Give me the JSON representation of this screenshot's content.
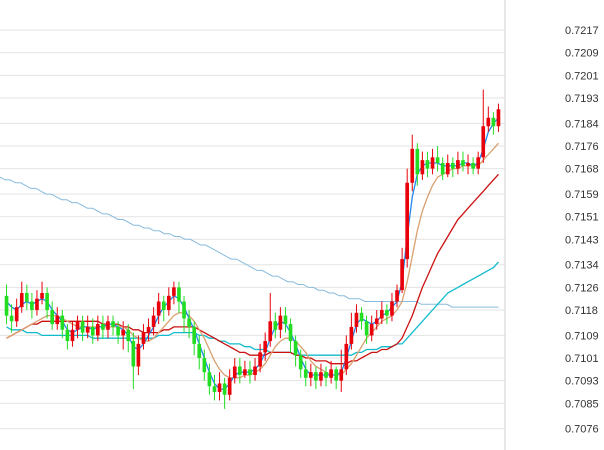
{
  "chart_data": {
    "type": "candlestick",
    "title": "",
    "xlabel": "",
    "ylabel": "",
    "ylim": [
      7072,
      7222
    ],
    "price_scale": 10000,
    "grid": true,
    "y_axis_position": "right",
    "y_ticks": [
      "0.7217",
      "0.7209",
      "0.7201",
      "0.7193",
      "0.7184",
      "0.7176",
      "0.7168",
      "0.7159",
      "0.7151",
      "0.7143",
      "0.7134",
      "0.7126",
      "0.7118",
      "0.7109",
      "0.7101",
      "0.7093",
      "0.7085",
      "0.7076"
    ],
    "colors": {
      "up": "#e8000b",
      "down": "#22dd22",
      "grid": "#e3e3e3",
      "axis": "#d0d0d0",
      "ma_fast": "#2288ee",
      "ma_mid": "#d9a070",
      "ma_slow": "#cc1111",
      "ma_cyan": "#11bbcc",
      "ma_long": "#88bbdd"
    },
    "candles": [
      [
        7123,
        7116,
        7127,
        7113
      ],
      [
        7116,
        7114,
        7120,
        7110
      ],
      [
        7114,
        7119,
        7122,
        7112
      ],
      [
        7119,
        7124,
        7128,
        7117
      ],
      [
        7124,
        7121,
        7127,
        7118
      ],
      [
        7121,
        7118,
        7124,
        7115
      ],
      [
        7118,
        7122,
        7125,
        7116
      ],
      [
        7122,
        7124,
        7128,
        7120
      ],
      [
        7124,
        7118,
        7126,
        7115
      ],
      [
        7118,
        7113,
        7121,
        7111
      ],
      [
        7113,
        7116,
        7119,
        7111
      ],
      [
        7116,
        7111,
        7118,
        7108
      ],
      [
        7111,
        7107,
        7113,
        7104
      ],
      [
        7107,
        7111,
        7114,
        7105
      ],
      [
        7111,
        7114,
        7116,
        7108
      ],
      [
        7114,
        7110,
        7116,
        7107
      ],
      [
        7110,
        7112,
        7116,
        7108
      ],
      [
        7112,
        7109,
        7115,
        7106
      ],
      [
        7109,
        7113,
        7116,
        7107
      ],
      [
        7113,
        7111,
        7116,
        7108
      ],
      [
        7111,
        7114,
        7116,
        7108
      ],
      [
        7114,
        7112,
        7116,
        7109
      ],
      [
        7112,
        7109,
        7114,
        7106
      ],
      [
        7109,
        7111,
        7114,
        7104
      ],
      [
        7111,
        7107,
        7113,
        7103
      ],
      [
        7107,
        7098,
        7110,
        7090
      ],
      [
        7098,
        7106,
        7109,
        7095
      ],
      [
        7106,
        7110,
        7113,
        7104
      ],
      [
        7110,
        7112,
        7115,
        7107
      ],
      [
        7112,
        7116,
        7119,
        7109
      ],
      [
        7116,
        7121,
        7124,
        7113
      ],
      [
        7121,
        7118,
        7123,
        7114
      ],
      [
        7118,
        7123,
        7126,
        7116
      ],
      [
        7123,
        7126,
        7128,
        7120
      ],
      [
        7126,
        7121,
        7128,
        7117
      ],
      [
        7121,
        7115,
        7123,
        7110
      ],
      [
        7115,
        7112,
        7118,
        7108
      ],
      [
        7112,
        7106,
        7114,
        7102
      ],
      [
        7106,
        7101,
        7109,
        7097
      ],
      [
        7101,
        7096,
        7104,
        7093
      ],
      [
        7096,
        7091,
        7099,
        7088
      ],
      [
        7091,
        7089,
        7095,
        7086
      ],
      [
        7089,
        7092,
        7096,
        7086
      ],
      [
        7092,
        7088,
        7094,
        7083
      ],
      [
        7088,
        7094,
        7097,
        7086
      ],
      [
        7094,
        7098,
        7101,
        7092
      ],
      [
        7098,
        7095,
        7101,
        7092
      ],
      [
        7095,
        7097,
        7100,
        7094
      ],
      [
        7097,
        7095,
        7100,
        7092
      ],
      [
        7095,
        7098,
        7101,
        7093
      ],
      [
        7098,
        7103,
        7106,
        7096
      ],
      [
        7103,
        7107,
        7110,
        7100
      ],
      [
        7107,
        7114,
        7124,
        7105
      ],
      [
        7114,
        7111,
        7117,
        7108
      ],
      [
        7111,
        7116,
        7119,
        7108
      ],
      [
        7116,
        7113,
        7119,
        7110
      ],
      [
        7113,
        7107,
        7115,
        7103
      ],
      [
        7107,
        7102,
        7109,
        7098
      ],
      [
        7102,
        7097,
        7104,
        7094
      ],
      [
        7097,
        7094,
        7100,
        7091
      ],
      [
        7094,
        7096,
        7099,
        7091
      ],
      [
        7096,
        7093,
        7098,
        7090
      ],
      [
        7093,
        7096,
        7099,
        7091
      ],
      [
        7096,
        7094,
        7098,
        7091
      ],
      [
        7094,
        7097,
        7100,
        7092
      ],
      [
        7097,
        7093,
        7098,
        7090
      ],
      [
        7093,
        7097,
        7104,
        7089
      ],
      [
        7097,
        7106,
        7109,
        7095
      ],
      [
        7106,
        7112,
        7117,
        7104
      ],
      [
        7112,
        7117,
        7120,
        7110
      ],
      [
        7117,
        7114,
        7119,
        7111
      ],
      [
        7114,
        7109,
        7116,
        7106
      ],
      [
        7109,
        7113,
        7116,
        7107
      ],
      [
        7113,
        7115,
        7118,
        7111
      ],
      [
        7115,
        7118,
        7121,
        7113
      ],
      [
        7118,
        7116,
        7120,
        7113
      ],
      [
        7116,
        7121,
        7124,
        7114
      ],
      [
        7121,
        7125,
        7127,
        7119
      ],
      [
        7125,
        7136,
        7140,
        7124
      ],
      [
        7136,
        7163,
        7168,
        7133
      ],
      [
        7163,
        7175,
        7180,
        7160
      ],
      [
        7175,
        7166,
        7177,
        7162
      ],
      [
        7166,
        7171,
        7174,
        7164
      ],
      [
        7171,
        7168,
        7174,
        7165
      ],
      [
        7168,
        7172,
        7175,
        7166
      ],
      [
        7172,
        7170,
        7176,
        7167
      ],
      [
        7170,
        7166,
        7172,
        7164
      ],
      [
        7166,
        7170,
        7173,
        7165
      ],
      [
        7170,
        7168,
        7172,
        7165
      ],
      [
        7168,
        7171,
        7174,
        7166
      ],
      [
        7171,
        7169,
        7174,
        7167
      ],
      [
        7169,
        7170,
        7173,
        7166
      ],
      [
        7170,
        7168,
        7172,
        7166
      ],
      [
        7168,
        7172,
        7174,
        7166
      ],
      [
        7172,
        7183,
        7196,
        7170
      ],
      [
        7183,
        7186,
        7190,
        7181
      ],
      [
        7186,
        7183,
        7188,
        7180
      ],
      [
        7183,
        7189,
        7191,
        7181
      ]
    ],
    "ma_fast": [
      7121,
      7119,
      7118,
      7120,
      7121,
      7120,
      7121,
      7122,
      7121,
      7118,
      7116,
      7114,
      7111,
      7110,
      7111,
      7112,
      7112,
      7111,
      7112,
      7112,
      7113,
      7113,
      7112,
      7111,
      7109,
      7105,
      7104,
      7106,
      7109,
      7112,
      7116,
      7119,
      7121,
      7123,
      7122,
      7119,
      7115,
      7111,
      7106,
      7101,
      7096,
      7092,
      7090,
      7090,
      7092,
      7095,
      7096,
      7096,
      7096,
      7097,
      7099,
      7103,
      7108,
      7112,
      7114,
      7113,
      7110,
      7106,
      7101,
      7097,
      7095,
      7095,
      7095,
      7095,
      7095,
      7095,
      7096,
      7101,
      7107,
      7113,
      7115,
      7114,
      7113,
      7114,
      7116,
      7117,
      7119,
      7121,
      7128,
      7144,
      7158,
      7166,
      7169,
      7170,
      7170,
      7170,
      7169,
      7169,
      7169,
      7169,
      7170,
      7170,
      7169,
      7170,
      7175,
      7181,
      7184,
      7186
    ],
    "ma_mid": [
      7108,
      7109,
      7110,
      7111,
      7112,
      7113,
      7114,
      7115,
      7116,
      7116,
      7116,
      7115,
      7114,
      7113,
      7112,
      7112,
      7112,
      7112,
      7112,
      7112,
      7112,
      7112,
      7112,
      7112,
      7111,
      7109,
      7108,
      7107,
      7107,
      7108,
      7110,
      7112,
      7114,
      7116,
      7117,
      7117,
      7116,
      7114,
      7111,
      7108,
      7104,
      7100,
      7097,
      7095,
      7094,
      7094,
      7094,
      7095,
      7095,
      7096,
      7097,
      7099,
      7102,
      7105,
      7107,
      7108,
      7108,
      7107,
      7105,
      7103,
      7100,
      7098,
      7097,
      7096,
      7095,
      7095,
      7095,
      7097,
      7099,
      7102,
      7105,
      7108,
      7110,
      7112,
      7114,
      7115,
      7116,
      7118,
      7121,
      7128,
      7137,
      7146,
      7153,
      7158,
      7162,
      7165,
      7166,
      7167,
      7168,
      7168,
      7169,
      7169,
      7169,
      7169,
      7171,
      7173,
      7175,
      7177
    ],
    "ma_slow": [
      7108,
      7109,
      7110,
      7111,
      7112,
      7113,
      7113,
      7114,
      7114,
      7114,
      7114,
      7114,
      7114,
      7114,
      7114,
      7114,
      7114,
      7114,
      7114,
      7113,
      7113,
      7113,
      7113,
      7112,
      7112,
      7111,
      7111,
      7110,
      7110,
      7110,
      7110,
      7111,
      7111,
      7112,
      7112,
      7112,
      7112,
      7112,
      7111,
      7110,
      7109,
      7108,
      7107,
      7106,
      7105,
      7104,
      7103,
      7103,
      7102,
      7102,
      7102,
      7102,
      7103,
      7103,
      7103,
      7103,
      7103,
      7102,
      7102,
      7101,
      7101,
      7100,
      7100,
      7100,
      7099,
      7099,
      7099,
      7099,
      7100,
      7100,
      7101,
      7102,
      7103,
      7103,
      7104,
      7104,
      7105,
      7106,
      7108,
      7112,
      7116,
      7121,
      7126,
      7130,
      7134,
      7138,
      7141,
      7144,
      7147,
      7150,
      7152,
      7154,
      7156,
      7158,
      7160,
      7162,
      7164,
      7166
    ],
    "ma_cyan": [
      7112,
      7111,
      7111,
      7111,
      7110,
      7110,
      7110,
      7109,
      7109,
      7109,
      7109,
      7109,
      7109,
      7109,
      7109,
      7109,
      7109,
      7108,
      7108,
      7108,
      7108,
      7108,
      7108,
      7108,
      7108,
      7108,
      7108,
      7108,
      7108,
      7108,
      7109,
      7109,
      7109,
      7110,
      7110,
      7110,
      7110,
      7110,
      7109,
      7109,
      7108,
      7108,
      7107,
      7107,
      7106,
      7106,
      7106,
      7105,
      7105,
      7104,
      7104,
      7104,
      7103,
      7103,
      7103,
      7103,
      7103,
      7102,
      7102,
      7102,
      7102,
      7102,
      7102,
      7102,
      7102,
      7102,
      7102,
      7102,
      7102,
      7103,
      7103,
      7104,
      7104,
      7104,
      7105,
      7105,
      7105,
      7106,
      7106,
      7108,
      7110,
      7112,
      7114,
      7116,
      7118,
      7120,
      7122,
      7124,
      7125,
      7126,
      7127,
      7128,
      7129,
      7130,
      7131,
      7132,
      7133,
      7135
    ],
    "ma_long": [
      7165,
      7164,
      7164,
      7163,
      7163,
      7162,
      7161,
      7161,
      7160,
      7159,
      7159,
      7158,
      7157,
      7157,
      7156,
      7156,
      7155,
      7154,
      7154,
      7153,
      7152,
      7152,
      7151,
      7150,
      7150,
      7149,
      7148,
      7148,
      7147,
      7147,
      7146,
      7146,
      7145,
      7145,
      7144,
      7144,
      7143,
      7143,
      7142,
      7141,
      7141,
      7140,
      7139,
      7138,
      7137,
      7136,
      7136,
      7135,
      7134,
      7133,
      7132,
      7132,
      7131,
      7130,
      7130,
      7129,
      7128,
      7128,
      7127,
      7127,
      7126,
      7126,
      7125,
      7125,
      7124,
      7124,
      7123,
      7123,
      7122,
      7122,
      7122,
      7121,
      7121,
      7121,
      7121,
      7121,
      7121,
      7121,
      7121,
      7121,
      7121,
      7121,
      7120,
      7120,
      7120,
      7120,
      7120,
      7120,
      7119,
      7119,
      7119,
      7119,
      7119,
      7119,
      7119,
      7119,
      7119,
      7119
    ]
  }
}
